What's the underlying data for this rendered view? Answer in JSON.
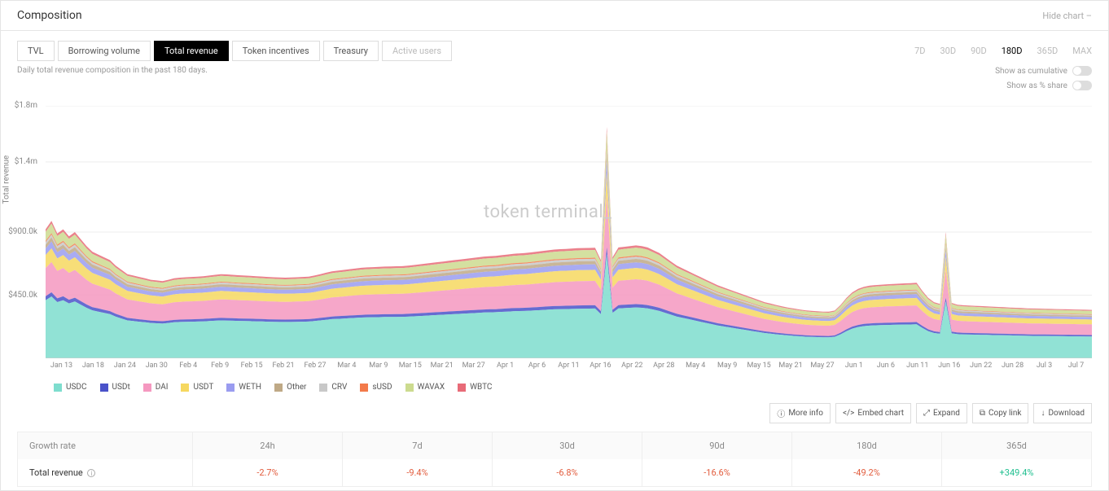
{
  "header": {
    "title": "Composition",
    "hide": "Hide chart –"
  },
  "tabs": [
    "TVL",
    "Borrowing volume",
    "Total revenue",
    "Token incentives",
    "Treasury",
    "Active users"
  ],
  "active_tab": 2,
  "disabled_tabs": [
    5
  ],
  "desc": "Daily total revenue composition in the past 180 days.",
  "range": {
    "opts": [
      "7D",
      "30D",
      "90D",
      "180D",
      "365D",
      "MAX"
    ],
    "sel": 3
  },
  "toggles": {
    "cum": "Show as cumulative",
    "share": "Show as % share"
  },
  "watermark": "token terminal_",
  "chart": {
    "type": "stacked-area",
    "ylabel": "Total revenue",
    "yticks": [
      {
        "v": 0,
        "l": ""
      },
      {
        "v": 450000,
        "l": "$450.0k"
      },
      {
        "v": 900000,
        "l": "$900.0k"
      },
      {
        "v": 1400000,
        "l": "$1.4m"
      },
      {
        "v": 1800000,
        "l": "$1.8m"
      }
    ],
    "ymax": 1800000,
    "xlabels": [
      "Jan 13",
      "Jan 18",
      "Jan 24",
      "Jan 30",
      "Feb 4",
      "Feb 9",
      "Feb 15",
      "Feb 21",
      "Feb 27",
      "Mar 4",
      "Mar 9",
      "Mar 15",
      "Mar 21",
      "Mar 27",
      "Apr 1",
      "Apr 6",
      "Apr 11",
      "Apr 16",
      "Apr 22",
      "Apr 28",
      "May 4",
      "May 9",
      "May 15",
      "May 21",
      "May 27",
      "Jun 1",
      "Jun 6",
      "Jun 11",
      "Jun 16",
      "Jun 22",
      "Jun 28",
      "Jul 3",
      "Jul 7"
    ],
    "n": 180,
    "series": [
      {
        "name": "USDC",
        "color": "#7eddce"
      },
      {
        "name": "USDt",
        "color": "#4a52c9"
      },
      {
        "name": "DAI",
        "color": "#f598c0"
      },
      {
        "name": "USDT",
        "color": "#f6d860"
      },
      {
        "name": "WETH",
        "color": "#9a9cf0"
      },
      {
        "name": "Other",
        "color": "#bfa986"
      },
      {
        "name": "CRV",
        "color": "#c8c8c8"
      },
      {
        "name": "sUSD",
        "color": "#f37a4a"
      },
      {
        "name": "WAVAX",
        "color": "#ccdb8f"
      },
      {
        "name": "WBTC",
        "color": "#e86b78"
      }
    ],
    "totals_ref": [
      920,
      980,
      890,
      920,
      870,
      900,
      850,
      800,
      760,
      740,
      720,
      700,
      660,
      630,
      600,
      590,
      580,
      570,
      560,
      555,
      550,
      560,
      570,
      575,
      578,
      580,
      582,
      585,
      590,
      595,
      600,
      598,
      595,
      592,
      590,
      588,
      585,
      583,
      580,
      578,
      576,
      575,
      576,
      578,
      580,
      582,
      590,
      600,
      610,
      620,
      625,
      630,
      635,
      640,
      645,
      648,
      650,
      652,
      654,
      655,
      656,
      657,
      660,
      665,
      670,
      675,
      680,
      685,
      690,
      695,
      700,
      705,
      710,
      715,
      720,
      725,
      728,
      730,
      735,
      740,
      745,
      748,
      750,
      755,
      760,
      765,
      770,
      775,
      778,
      780,
      782,
      785,
      786,
      787,
      788,
      700,
      1650,
      720,
      790,
      795,
      800,
      805,
      800,
      790,
      770,
      750,
      720,
      690,
      660,
      640,
      620,
      600,
      580,
      560,
      540,
      520,
      505,
      490,
      475,
      460,
      445,
      430,
      415,
      400,
      390,
      380,
      370,
      362,
      355,
      348,
      342,
      338,
      335,
      333,
      332,
      340,
      380,
      430,
      470,
      495,
      510,
      518,
      522,
      525,
      528,
      530,
      532,
      534,
      536,
      538,
      480,
      430,
      400,
      388,
      900,
      395,
      382,
      378,
      376,
      374,
      372,
      370,
      368,
      366,
      364,
      362,
      360,
      358,
      356,
      355,
      354,
      353,
      352,
      351,
      350,
      349,
      348,
      347,
      346,
      345
    ],
    "shares": {
      "USDC": 0.45,
      "USDt": 0.03,
      "DAI": 0.22,
      "USDT": 0.1,
      "WETH": 0.05,
      "Other": 0.03,
      "CRV": 0.02,
      "sUSD": 0.01,
      "WAVAX": 0.07,
      "WBTC": 0.02
    }
  },
  "actions": [
    {
      "icon": "ⓘ",
      "label": "More info"
    },
    {
      "icon": "</>",
      "label": "Embed chart"
    },
    {
      "icon": "⤢",
      "label": "Expand"
    },
    {
      "icon": "⧉",
      "label": "Copy link"
    },
    {
      "icon": "↓",
      "label": "Download"
    }
  ],
  "table": {
    "title": "Growth rate",
    "row_label": "Total revenue",
    "cols": [
      "24h",
      "7d",
      "30d",
      "90d",
      "180d",
      "365d"
    ],
    "vals": [
      {
        "t": "-2.7%",
        "cls": "neg"
      },
      {
        "t": "-9.4%",
        "cls": "neg"
      },
      {
        "t": "-6.8%",
        "cls": "neg"
      },
      {
        "t": "-16.6%",
        "cls": "neg"
      },
      {
        "t": "-49.2%",
        "cls": "neg"
      },
      {
        "t": "+349.4%",
        "cls": "pos"
      }
    ]
  }
}
